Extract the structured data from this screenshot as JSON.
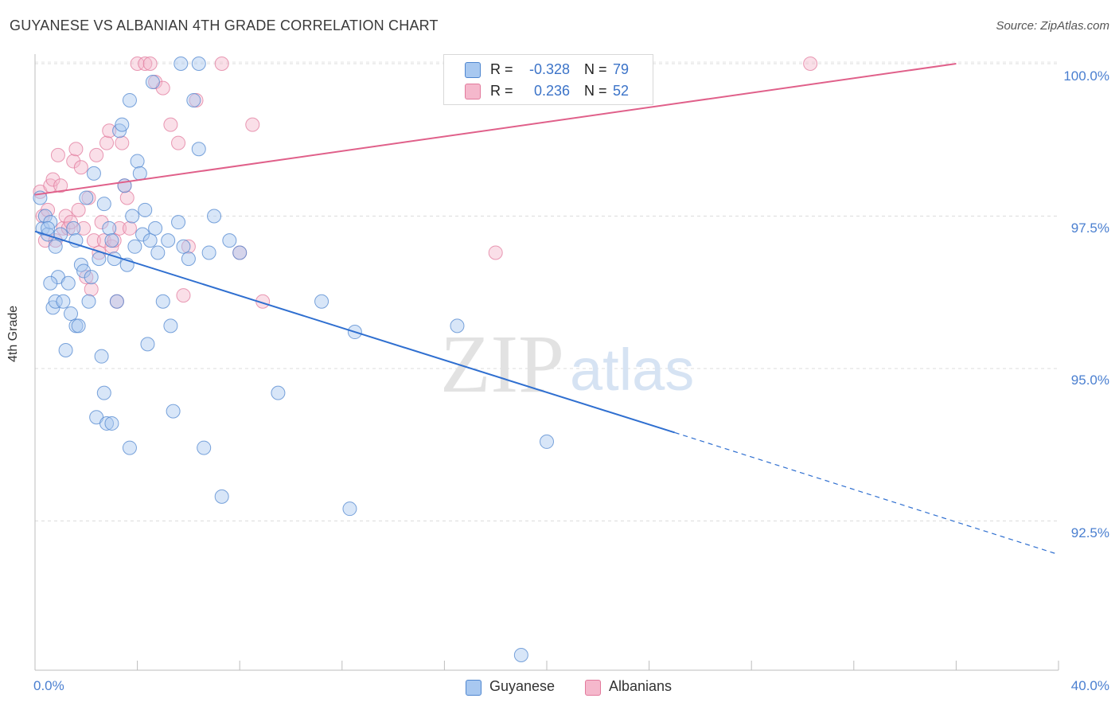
{
  "header": {
    "title": "GUYANESE VS ALBANIAN 4TH GRADE CORRELATION CHART",
    "source": "Source: ZipAtlas.com"
  },
  "watermark": {
    "zip": "ZIP",
    "atlas": "atlas"
  },
  "legend_top": [
    {
      "r_label": "R =",
      "r_value": "-0.328",
      "n_label": "N =",
      "n_value": "79",
      "color": "#a8c8f0"
    },
    {
      "r_label": "R =",
      "r_value": "0.236",
      "n_label": "N =",
      "n_value": "52",
      "color": "#f5b8cc"
    }
  ],
  "legend_bottom": [
    "Guyanese",
    "Albanians"
  ],
  "chart_data": {
    "type": "scatter",
    "title": "GUYANESE VS ALBANIAN 4TH GRADE CORRELATION CHART",
    "xlabel": "",
    "ylabel": "4th Grade",
    "xlim": [
      0,
      40
    ],
    "ylim": [
      90.1,
      100.2
    ],
    "x_tick_labels": [
      "0.0%",
      "40.0%"
    ],
    "y_ticks": [
      92.5,
      95.0,
      97.5,
      100.0
    ],
    "y_tick_labels": [
      "92.5%",
      "95.0%",
      "97.5%",
      "100.0%"
    ],
    "grid": true,
    "legend_placement": "top-center",
    "colors": {
      "guyanese": "#a8c8f0",
      "guyanese_edge": "#4f86cf",
      "guyanese_line": "#2f6fd0",
      "albanians": "#f5b8cc",
      "albanians_edge": "#e27a9c",
      "albanians_line": "#e0608a"
    },
    "series": [
      {
        "name": "Guyanese",
        "r": -0.328,
        "n": 79,
        "trend": {
          "x0": 0,
          "y0": 97.25,
          "x1": 25,
          "y1": 93.95,
          "dash_to_x": 40,
          "dash_to_y": 91.95
        },
        "points": [
          [
            0.2,
            97.8
          ],
          [
            0.3,
            97.3
          ],
          [
            0.4,
            97.5
          ],
          [
            0.5,
            97.2
          ],
          [
            0.6,
            97.4
          ],
          [
            0.7,
            96.0
          ],
          [
            0.8,
            96.1
          ],
          [
            0.9,
            96.5
          ],
          [
            1.0,
            97.2
          ],
          [
            1.1,
            96.1
          ],
          [
            1.2,
            95.3
          ],
          [
            1.3,
            96.4
          ],
          [
            1.4,
            95.9
          ],
          [
            1.5,
            97.3
          ],
          [
            1.6,
            95.7
          ],
          [
            1.7,
            95.7
          ],
          [
            1.8,
            96.7
          ],
          [
            1.9,
            96.6
          ],
          [
            2.0,
            97.8
          ],
          [
            2.1,
            96.1
          ],
          [
            2.2,
            96.5
          ],
          [
            2.3,
            98.2
          ],
          [
            2.4,
            94.2
          ],
          [
            2.5,
            96.8
          ],
          [
            2.6,
            95.2
          ],
          [
            2.7,
            94.6
          ],
          [
            2.8,
            94.1
          ],
          [
            2.9,
            97.3
          ],
          [
            3.0,
            97.1
          ],
          [
            3.1,
            96.8
          ],
          [
            3.2,
            96.1
          ],
          [
            3.3,
            98.9
          ],
          [
            3.4,
            99.0
          ],
          [
            3.5,
            98.0
          ],
          [
            3.6,
            96.7
          ],
          [
            3.7,
            99.4
          ],
          [
            3.8,
            97.5
          ],
          [
            3.9,
            97.0
          ],
          [
            4.0,
            98.4
          ],
          [
            4.1,
            98.2
          ],
          [
            4.2,
            97.2
          ],
          [
            4.3,
            97.6
          ],
          [
            4.4,
            95.4
          ],
          [
            4.5,
            97.1
          ],
          [
            4.6,
            99.7
          ],
          [
            4.7,
            97.3
          ],
          [
            4.8,
            96.9
          ],
          [
            5.0,
            96.1
          ],
          [
            5.2,
            97.1
          ],
          [
            5.3,
            95.7
          ],
          [
            5.4,
            94.3
          ],
          [
            5.6,
            97.4
          ],
          [
            5.8,
            97.0
          ],
          [
            6.0,
            96.8
          ],
          [
            6.2,
            99.4
          ],
          [
            6.4,
            98.6
          ],
          [
            6.6,
            93.7
          ],
          [
            6.8,
            96.9
          ],
          [
            7.0,
            97.5
          ],
          [
            7.3,
            92.9
          ],
          [
            7.6,
            97.1
          ],
          [
            8.0,
            96.9
          ],
          [
            9.5,
            94.6
          ],
          [
            11.2,
            96.1
          ],
          [
            12.5,
            95.6
          ],
          [
            16.5,
            95.7
          ],
          [
            17.0,
            100.0
          ],
          [
            20.0,
            93.8
          ],
          [
            19.0,
            90.3
          ],
          [
            12.3,
            92.7
          ],
          [
            0.5,
            97.3
          ],
          [
            0.8,
            97.0
          ],
          [
            1.6,
            97.1
          ],
          [
            2.7,
            97.7
          ],
          [
            3.7,
            93.7
          ],
          [
            5.7,
            100.0
          ],
          [
            6.4,
            100.0
          ],
          [
            0.6,
            96.4
          ],
          [
            3.0,
            94.1
          ]
        ]
      },
      {
        "name": "Albanians",
        "r": 0.236,
        "n": 52,
        "trend": {
          "x0": 0,
          "y0": 97.85,
          "x1": 36.0,
          "y1": 100.0
        },
        "points": [
          [
            0.2,
            97.9
          ],
          [
            0.3,
            97.5
          ],
          [
            0.4,
            97.1
          ],
          [
            0.5,
            97.6
          ],
          [
            0.6,
            98.0
          ],
          [
            0.7,
            98.1
          ],
          [
            0.8,
            97.1
          ],
          [
            0.9,
            98.5
          ],
          [
            1.0,
            98.0
          ],
          [
            1.1,
            97.3
          ],
          [
            1.2,
            97.5
          ],
          [
            1.3,
            97.3
          ],
          [
            1.4,
            97.4
          ],
          [
            1.5,
            98.4
          ],
          [
            1.6,
            98.6
          ],
          [
            1.7,
            97.6
          ],
          [
            1.8,
            98.3
          ],
          [
            1.9,
            97.3
          ],
          [
            2.0,
            96.5
          ],
          [
            2.1,
            97.8
          ],
          [
            2.2,
            96.3
          ],
          [
            2.3,
            97.1
          ],
          [
            2.4,
            98.5
          ],
          [
            2.5,
            96.9
          ],
          [
            2.6,
            97.4
          ],
          [
            2.7,
            97.1
          ],
          [
            2.8,
            98.7
          ],
          [
            2.9,
            98.9
          ],
          [
            3.0,
            97.0
          ],
          [
            3.1,
            97.1
          ],
          [
            3.2,
            96.1
          ],
          [
            3.3,
            97.3
          ],
          [
            3.4,
            98.7
          ],
          [
            3.5,
            98.0
          ],
          [
            3.6,
            97.8
          ],
          [
            3.7,
            97.3
          ],
          [
            4.0,
            100.0
          ],
          [
            4.3,
            100.0
          ],
          [
            4.5,
            100.0
          ],
          [
            4.7,
            99.7
          ],
          [
            5.0,
            99.6
          ],
          [
            5.3,
            99.0
          ],
          [
            5.6,
            98.7
          ],
          [
            5.8,
            96.2
          ],
          [
            6.0,
            97.0
          ],
          [
            7.3,
            100.0
          ],
          [
            8.5,
            99.0
          ],
          [
            8.9,
            96.1
          ],
          [
            18.0,
            96.9
          ],
          [
            30.3,
            100.0
          ],
          [
            6.3,
            99.4
          ],
          [
            8.0,
            96.9
          ]
        ]
      }
    ]
  }
}
